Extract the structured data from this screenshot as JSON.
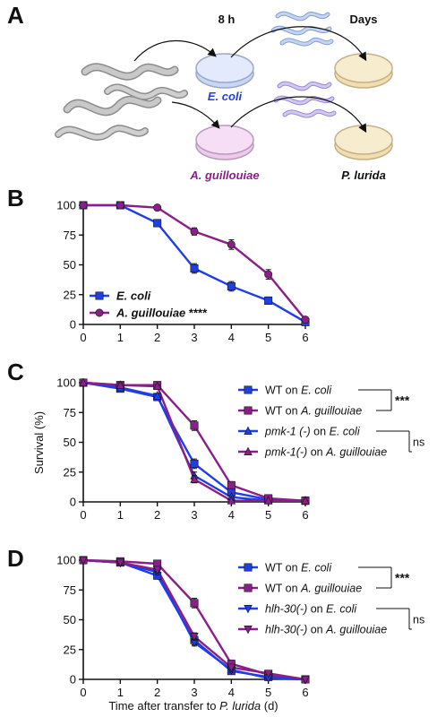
{
  "panels": {
    "a": {
      "letter": "A",
      "time_short": "8 h",
      "time_long": "Days",
      "dish_ecoli": "E. coli",
      "dish_aguil": "A. guillouiae",
      "dish_plurida": "P. lurida",
      "colors": {
        "ecoli": "#1f3ee6",
        "aguil": "#8a1f8a",
        "worm": "#a6a6a6",
        "worm_blue": "#9fb6e6",
        "worm_purple": "#b6a6e3",
        "dish_blue": "#dde6fb",
        "dish_purple": "#f4d8f4",
        "dish_yellow": "#f7ebcc"
      }
    },
    "b": {
      "letter": "B"
    },
    "c": {
      "letter": "C"
    },
    "d": {
      "letter": "D"
    }
  },
  "shared": {
    "ylabel": "Survival (%)",
    "xlabel_prefix": "Time after transfer to ",
    "xlabel_italic": "P. lurida",
    "xlabel_suffix": " (d)"
  },
  "chart_data": [
    {
      "id": "B",
      "type": "line",
      "x": [
        0,
        1,
        2,
        3,
        4,
        5,
        6
      ],
      "xlim": [
        0,
        6
      ],
      "ylim": [
        0,
        100
      ],
      "yticks": [
        0,
        25,
        50,
        75,
        100
      ],
      "xticks": [
        0,
        1,
        2,
        3,
        4,
        5,
        6
      ],
      "legend_position": "bottom-left",
      "series": [
        {
          "name": "E. coli",
          "values": [
            100,
            100,
            85,
            47,
            32,
            20,
            2
          ],
          "errors": [
            0,
            0,
            2,
            4,
            4,
            3,
            1
          ],
          "color": "#1f3ee6",
          "marker": "square"
        },
        {
          "name": "A. guillouiae",
          "values": [
            100,
            100,
            98,
            78,
            67,
            42,
            4
          ],
          "errors": [
            0,
            0,
            1,
            3,
            4,
            4,
            1
          ],
          "color": "#8a1f8a",
          "marker": "circle",
          "suffix": " ****"
        }
      ],
      "legend": [
        {
          "label": "E. coli",
          "italic": true,
          "color": "#1f3ee6",
          "marker": "square"
        },
        {
          "label": "A. guillouiae",
          "italic": true,
          "color": "#8a1f8a",
          "marker": "circle",
          "suffix": "****"
        }
      ]
    },
    {
      "id": "C",
      "type": "line",
      "x": [
        0,
        1,
        2,
        3,
        4,
        5,
        6
      ],
      "xlim": [
        0,
        6
      ],
      "ylim": [
        0,
        100
      ],
      "yticks": [
        0,
        25,
        50,
        75,
        100
      ],
      "xticks": [
        0,
        1,
        2,
        3,
        4,
        5,
        6
      ],
      "ylabel": "Survival (%)",
      "legend_position": "right",
      "series": [
        {
          "name": "WT on E. coli",
          "values": [
            100,
            95,
            88,
            32,
            8,
            2,
            1
          ],
          "errors": [
            0,
            2,
            2,
            4,
            2,
            1,
            0
          ],
          "color": "#1f3ee6",
          "marker": "square"
        },
        {
          "name": "WT on A. guillouiae",
          "values": [
            100,
            98,
            98,
            64,
            14,
            3,
            1
          ],
          "errors": [
            0,
            2,
            1,
            4,
            3,
            1,
            0
          ],
          "color": "#8a1f8a",
          "marker": "square"
        },
        {
          "name": "pmk-1 (-) on E. coli",
          "values": [
            100,
            96,
            89,
            22,
            4,
            1,
            1
          ],
          "errors": [
            0,
            2,
            2,
            3,
            1,
            0,
            0
          ],
          "color": "#1f3ee6",
          "marker": "triangle-up"
        },
        {
          "name": "pmk-1(-) on A. guillouiae",
          "values": [
            100,
            98,
            97,
            19,
            1,
            1,
            1
          ],
          "errors": [
            0,
            2,
            1,
            3,
            1,
            0,
            0
          ],
          "color": "#8a1f8a",
          "marker": "triangle-up"
        }
      ],
      "legend": [
        {
          "parts": [
            [
              "WT on ",
              false
            ],
            [
              "E. coli",
              true
            ]
          ],
          "color": "#1f3ee6",
          "marker": "square"
        },
        {
          "parts": [
            [
              "WT on ",
              false
            ],
            [
              "A. guillouiae",
              true
            ]
          ],
          "color": "#8a1f8a",
          "marker": "square"
        },
        {
          "parts": [
            [
              "pmk-1 (-)",
              true
            ],
            [
              " on ",
              false
            ],
            [
              "E. coli",
              true
            ]
          ],
          "color": "#1f3ee6",
          "marker": "triangle-up"
        },
        {
          "parts": [
            [
              "pmk-1(-)",
              true
            ],
            [
              " on ",
              false
            ],
            [
              "A. guillouiae",
              true
            ]
          ],
          "color": "#8a1f8a",
          "marker": "triangle-up"
        }
      ],
      "significance": [
        {
          "pair": [
            0,
            1
          ],
          "label": "***",
          "bold": true
        },
        {
          "pair": [
            2,
            3
          ],
          "label": "ns",
          "bold": false
        }
      ]
    },
    {
      "id": "D",
      "type": "line",
      "x": [
        0,
        1,
        2,
        3,
        4,
        5,
        6
      ],
      "xlim": [
        0,
        6
      ],
      "ylim": [
        0,
        100
      ],
      "yticks": [
        0,
        25,
        50,
        75,
        100
      ],
      "xticks": [
        0,
        1,
        2,
        3,
        4,
        5,
        6
      ],
      "legend_position": "right",
      "series": [
        {
          "name": "WT on E. coli",
          "values": [
            100,
            98,
            87,
            33,
            7,
            2,
            0
          ],
          "errors": [
            0,
            1,
            2,
            4,
            2,
            1,
            0
          ],
          "color": "#1f3ee6",
          "marker": "square"
        },
        {
          "name": "WT on A. guillouiae",
          "values": [
            100,
            99,
            97,
            64,
            13,
            4,
            0
          ],
          "errors": [
            0,
            1,
            1,
            4,
            3,
            1,
            0
          ],
          "color": "#8a1f8a",
          "marker": "square"
        },
        {
          "name": "hlh-30(-) on E. coli",
          "values": [
            100,
            98,
            90,
            31,
            8,
            1,
            0
          ],
          "errors": [
            0,
            1,
            2,
            3,
            2,
            1,
            0
          ],
          "color": "#1f3ee6",
          "marker": "triangle-down"
        },
        {
          "name": "hlh-30(-) on A. guillouiae",
          "values": [
            100,
            98,
            92,
            36,
            10,
            5,
            0
          ],
          "errors": [
            0,
            1,
            2,
            3,
            2,
            1,
            0
          ],
          "color": "#8a1f8a",
          "marker": "triangle-down"
        }
      ],
      "legend": [
        {
          "parts": [
            [
              "WT on ",
              false
            ],
            [
              "E. coli",
              true
            ]
          ],
          "color": "#1f3ee6",
          "marker": "square"
        },
        {
          "parts": [
            [
              "WT on ",
              false
            ],
            [
              "A. guillouiae",
              true
            ]
          ],
          "color": "#8a1f8a",
          "marker": "square"
        },
        {
          "parts": [
            [
              "hlh-30(-)",
              true
            ],
            [
              " on ",
              false
            ],
            [
              "E. coli",
              true
            ]
          ],
          "color": "#1f3ee6",
          "marker": "triangle-down"
        },
        {
          "parts": [
            [
              "hlh-30(-)",
              true
            ],
            [
              " on ",
              false
            ],
            [
              "A. guillouiae",
              true
            ]
          ],
          "color": "#8a1f8a",
          "marker": "triangle-down"
        }
      ],
      "significance": [
        {
          "pair": [
            0,
            1
          ],
          "label": "***",
          "bold": true
        },
        {
          "pair": [
            2,
            3
          ],
          "label": "ns",
          "bold": false
        }
      ]
    }
  ]
}
